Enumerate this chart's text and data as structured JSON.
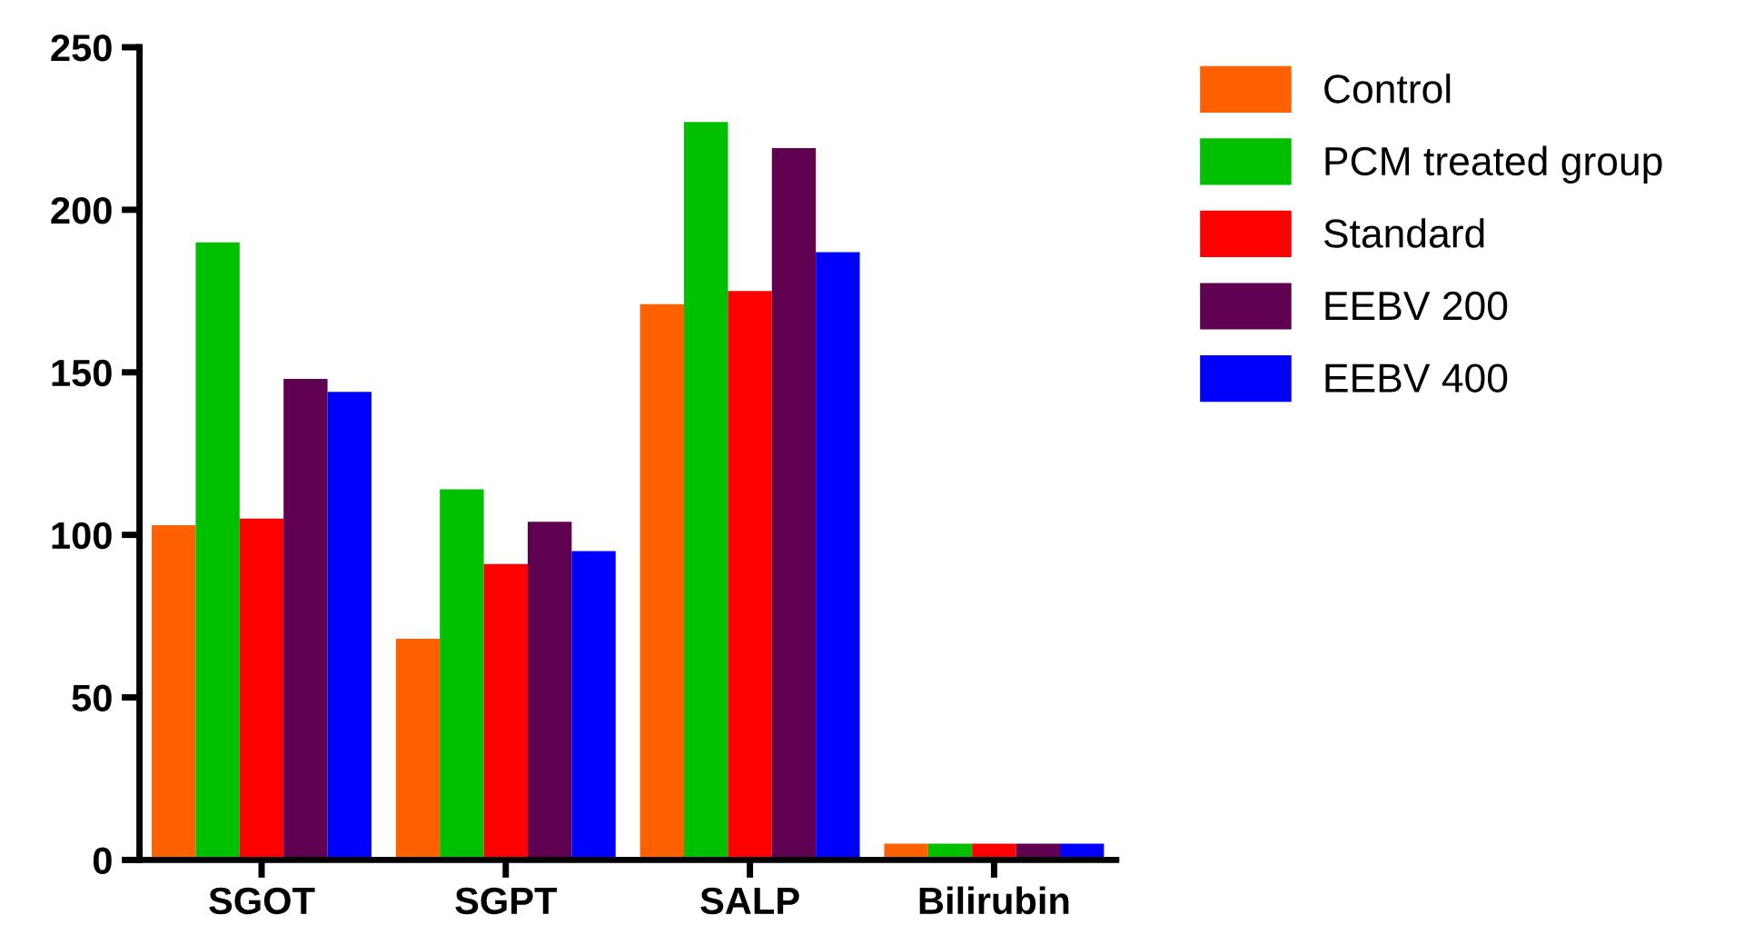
{
  "chart_data": {
    "type": "bar",
    "categories": [
      "SGOT",
      "SGPT",
      "SALP",
      "Bilirubin"
    ],
    "series": [
      {
        "name": "Control",
        "color": "#ff6000",
        "values": [
          103,
          68,
          171,
          5
        ]
      },
      {
        "name": "PCM treated group",
        "color": "#00c000",
        "values": [
          190,
          114,
          227,
          5
        ]
      },
      {
        "name": "Standard",
        "color": "#ff0000",
        "values": [
          105,
          91,
          175,
          5
        ]
      },
      {
        "name": "EEBV 200",
        "color": "#600050",
        "values": [
          148,
          104,
          219,
          5
        ]
      },
      {
        "name": "EEBV 400",
        "color": "#0000ff",
        "values": [
          144,
          95,
          187,
          5
        ]
      }
    ],
    "ylim": [
      0,
      250
    ],
    "yticks": [
      0,
      50,
      100,
      150,
      200,
      250
    ],
    "grid": false,
    "legend": "top right"
  }
}
